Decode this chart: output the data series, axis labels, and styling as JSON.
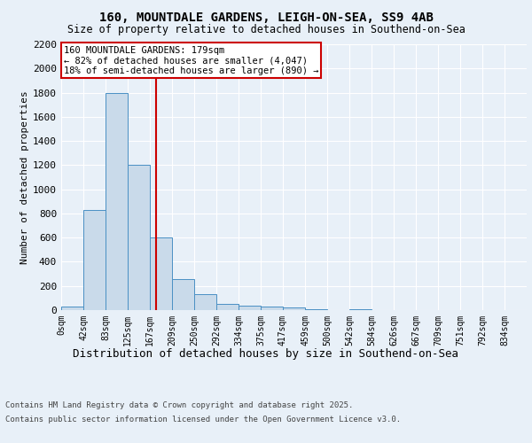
{
  "title1": "160, MOUNTDALE GARDENS, LEIGH-ON-SEA, SS9 4AB",
  "title2": "Size of property relative to detached houses in Southend-on-Sea",
  "xlabel": "Distribution of detached houses by size in Southend-on-Sea",
  "ylabel": "Number of detached properties",
  "bar_labels": [
    "0sqm",
    "42sqm",
    "83sqm",
    "125sqm",
    "167sqm",
    "209sqm",
    "250sqm",
    "292sqm",
    "334sqm",
    "375sqm",
    "417sqm",
    "459sqm",
    "500sqm",
    "542sqm",
    "584sqm",
    "626sqm",
    "667sqm",
    "709sqm",
    "751sqm",
    "792sqm",
    "834sqm"
  ],
  "bar_values": [
    30,
    830,
    1800,
    1200,
    600,
    260,
    130,
    50,
    40,
    30,
    20,
    10,
    0,
    10,
    0,
    0,
    0,
    0,
    0,
    0,
    0
  ],
  "bar_color": "#c9daea",
  "bar_edge_color": "#4a90c4",
  "vline_color": "#cc0000",
  "annotation_title": "160 MOUNTDALE GARDENS: 179sqm",
  "annotation_line1": "← 82% of detached houses are smaller (4,047)",
  "annotation_line2": "18% of semi-detached houses are larger (890) →",
  "annotation_box_color": "#cc0000",
  "ylim": [
    0,
    2200
  ],
  "yticks": [
    0,
    200,
    400,
    600,
    800,
    1000,
    1200,
    1400,
    1600,
    1800,
    2000,
    2200
  ],
  "footer1": "Contains HM Land Registry data © Crown copyright and database right 2025.",
  "footer2": "Contains public sector information licensed under the Open Government Licence v3.0.",
  "bg_color": "#e8f0f8",
  "plot_bg_color": "#e8f0f8"
}
